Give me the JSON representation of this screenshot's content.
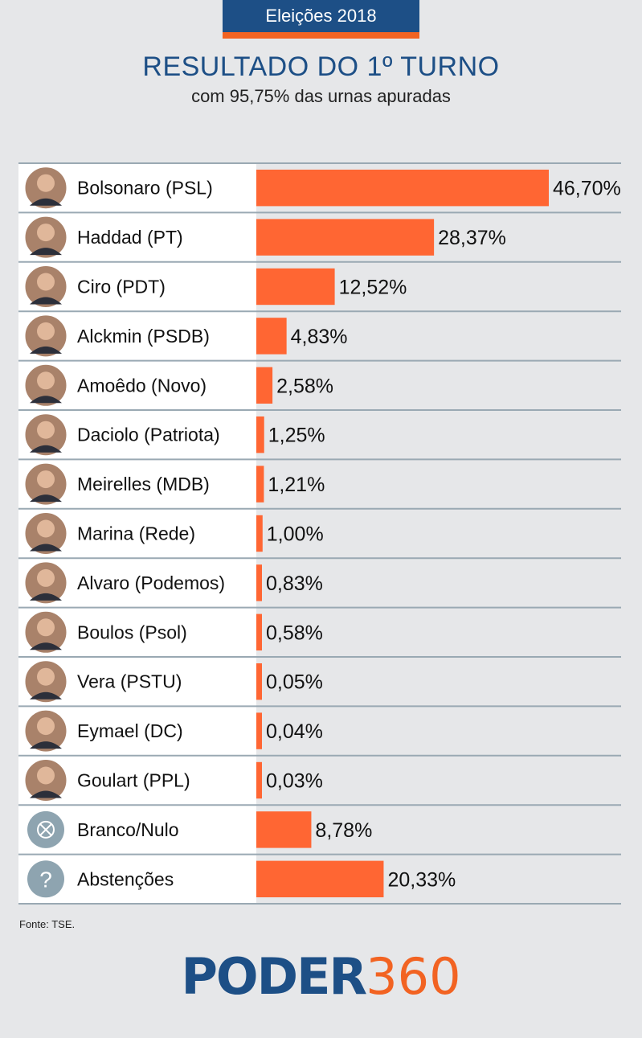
{
  "header": {
    "tag": "Eleições 2018",
    "title": "RESULTADO DO 1º TURNO",
    "subtitle": "com 95,75% das urnas apuradas"
  },
  "colors": {
    "brand_blue": "#1d4f86",
    "bar_orange": "#ff6633",
    "row_background": "#ffffff",
    "page_background": "#e6e7e9",
    "icon_gray": "#8ea4b0"
  },
  "chart_data": {
    "type": "bar",
    "orientation": "horizontal",
    "title": "RESULTADO DO 1º TURNO",
    "subtitle": "com 95,75% das urnas apuradas",
    "categories": [
      "Bolsonaro (PSL)",
      "Haddad (PT)",
      "Ciro (PDT)",
      "Alckmin (PSDB)",
      "Amoêdo (Novo)",
      "Daciolo (Patriota)",
      "Meirelles (MDB)",
      "Marina (Rede)",
      "Alvaro (Podemos)",
      "Boulos (Psol)",
      "Vera (PSTU)",
      "Eymael (DC)",
      "Goulart (PPL)",
      "Branco/Nulo",
      "Abstenções"
    ],
    "values": [
      46.7,
      28.37,
      12.52,
      4.83,
      2.58,
      1.25,
      1.21,
      1.0,
      0.83,
      0.58,
      0.05,
      0.04,
      0.03,
      8.78,
      20.33
    ],
    "value_labels": [
      "46,70%",
      "28,37%",
      "12,52%",
      "4,83%",
      "2,58%",
      "1,25%",
      "1,21%",
      "1,00%",
      "0,83%",
      "0,58%",
      "0,05%",
      "0,04%",
      "0,03%",
      "8,78%",
      "20,33%"
    ],
    "icons": [
      "candidate-photo",
      "candidate-photo",
      "candidate-photo",
      "candidate-photo",
      "candidate-photo",
      "candidate-photo",
      "candidate-photo",
      "candidate-photo",
      "candidate-photo",
      "candidate-photo",
      "candidate-photo",
      "candidate-photo",
      "candidate-photo",
      "blank-null-icon",
      "question-icon"
    ],
    "xlim": [
      0,
      48
    ],
    "xlabel": "",
    "ylabel": "",
    "grid": false,
    "legend": "none"
  },
  "source": "Fonte: TSE.",
  "logo": {
    "word": "PODER",
    "number": "360"
  }
}
